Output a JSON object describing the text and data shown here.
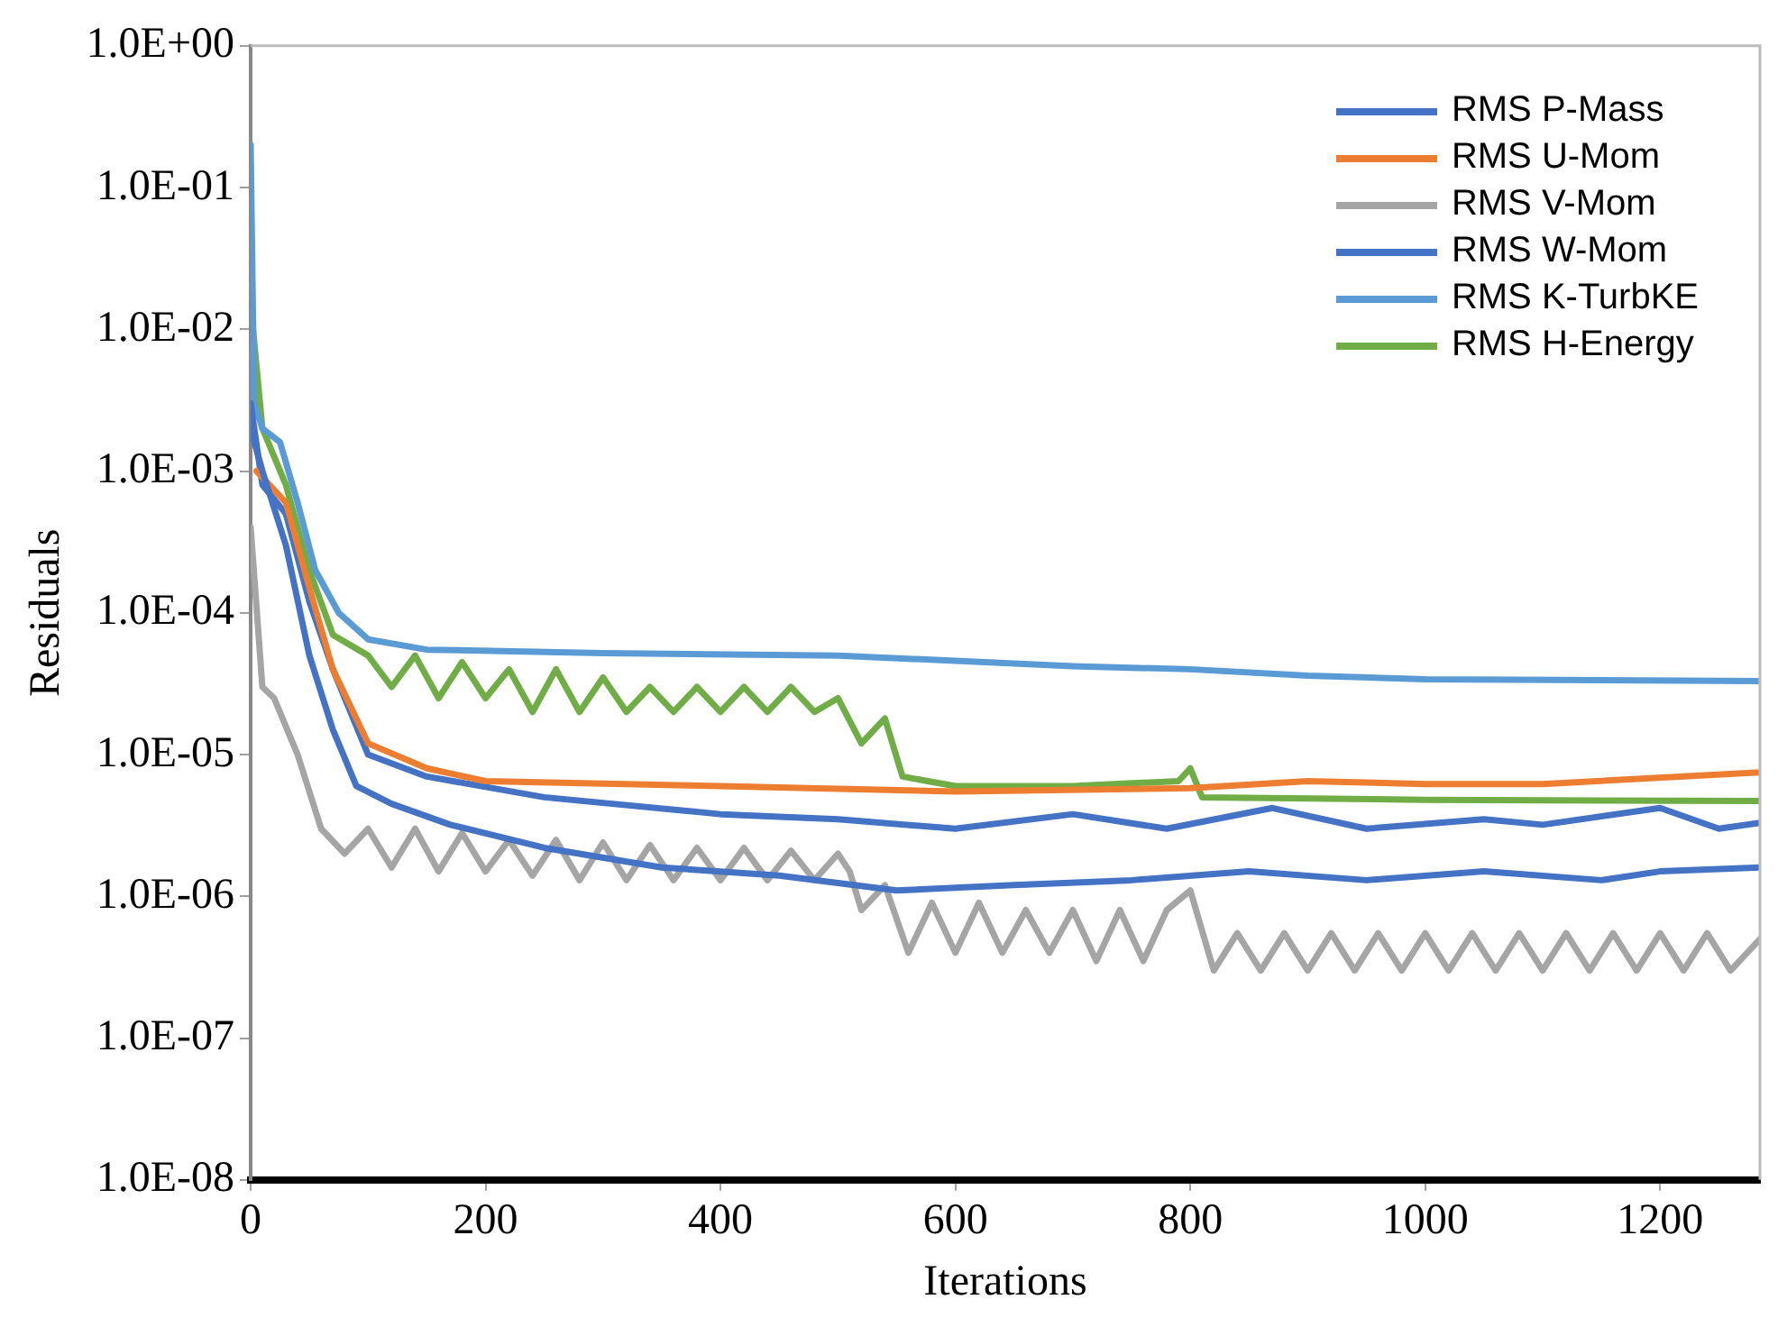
{
  "chart_data": {
    "type": "line",
    "xlabel": "Iterations",
    "ylabel": "Residuals",
    "log": "y",
    "grid": false,
    "legend": "top right",
    "marker": "none",
    "line_style": "solid",
    "xlim": [
      0,
      1285
    ],
    "xticks": [
      0,
      200,
      400,
      600,
      800,
      1000,
      1200
    ],
    "ylim": [
      1e-08,
      1
    ],
    "yticks": [
      {
        "value": 1,
        "label": "1.0E+00"
      },
      {
        "value": 0.1,
        "label": "1.0E-01"
      },
      {
        "value": 0.01,
        "label": "1.0E-02"
      },
      {
        "value": 0.001,
        "label": "1.0E-03"
      },
      {
        "value": 0.0001,
        "label": "1.0E-04"
      },
      {
        "value": 1e-05,
        "label": "1.0E-05"
      },
      {
        "value": 1e-06,
        "label": "1.0E-06"
      },
      {
        "value": 1e-07,
        "label": "1.0E-07"
      },
      {
        "value": 1e-08,
        "label": "1.0E-08"
      }
    ],
    "series": [
      {
        "name": "RMS P-Mass",
        "color": "#4472c4",
        "x": [
          0,
          10,
          30,
          50,
          70,
          90,
          120,
          170,
          250,
          350,
          450,
          550,
          650,
          750,
          850,
          950,
          1050,
          1150,
          1200,
          1285
        ],
        "values": [
          0.002,
          0.001,
          0.0003,
          5e-05,
          1.5e-05,
          6e-06,
          4.5e-06,
          3.2e-06,
          2.2e-06,
          1.6e-06,
          1.4e-06,
          1.1e-06,
          1.2e-06,
          1.3e-06,
          1.5e-06,
          1.3e-06,
          1.5e-06,
          1.3e-06,
          1.5e-06,
          1.6e-06
        ]
      },
      {
        "name": "RMS U-Mom",
        "color": "#ed7d31",
        "x": [
          5,
          30,
          50,
          70,
          100,
          150,
          200,
          400,
          600,
          800,
          900,
          1000,
          1100,
          1285
        ],
        "values": [
          0.001,
          0.0006,
          0.00015,
          4e-05,
          1.2e-05,
          8e-06,
          6.5e-06,
          6e-06,
          5.5e-06,
          5.8e-06,
          6.5e-06,
          6.2e-06,
          6.2e-06,
          7.5e-06
        ]
      },
      {
        "name": "RMS V-Mom",
        "color": "#a5a5a5",
        "x": [
          0,
          10,
          20,
          40,
          60,
          80,
          100,
          120,
          140,
          160,
          180,
          200,
          220,
          240,
          260,
          280,
          300,
          320,
          340,
          360,
          380,
          400,
          420,
          440,
          460,
          480,
          500,
          510,
          520,
          540,
          560,
          580,
          600,
          620,
          640,
          660,
          680,
          700,
          720,
          740,
          760,
          780,
          800,
          820,
          840,
          860,
          880,
          900,
          920,
          940,
          960,
          980,
          1000,
          1020,
          1040,
          1060,
          1080,
          1100,
          1120,
          1140,
          1160,
          1180,
          1200,
          1220,
          1240,
          1260,
          1285
        ],
        "values": [
          0.0004,
          3e-05,
          2.5e-05,
          1e-05,
          3e-06,
          2e-06,
          3e-06,
          1.6e-06,
          3e-06,
          1.5e-06,
          2.8e-06,
          1.5e-06,
          2.5e-06,
          1.4e-06,
          2.5e-06,
          1.3e-06,
          2.4e-06,
          1.3e-06,
          2.3e-06,
          1.3e-06,
          2.2e-06,
          1.3e-06,
          2.2e-06,
          1.3e-06,
          2.1e-06,
          1.3e-06,
          2e-06,
          1.5e-06,
          8e-07,
          1.2e-06,
          4e-07,
          9e-07,
          4e-07,
          9e-07,
          4e-07,
          8e-07,
          4e-07,
          8e-07,
          3.5e-07,
          8e-07,
          3.5e-07,
          8e-07,
          1.1e-06,
          3e-07,
          5.5e-07,
          3e-07,
          5.5e-07,
          3e-07,
          5.5e-07,
          3e-07,
          5.5e-07,
          3e-07,
          5.5e-07,
          3e-07,
          5.5e-07,
          3e-07,
          5.5e-07,
          3e-07,
          5.5e-07,
          3e-07,
          5.5e-07,
          3e-07,
          5.5e-07,
          3e-07,
          5.5e-07,
          3e-07,
          5e-07
        ]
      },
      {
        "name": "RMS W-Mom",
        "color": "#4472c4",
        "x": [
          0,
          10,
          30,
          50,
          70,
          100,
          150,
          250,
          400,
          500,
          600,
          700,
          780,
          870,
          950,
          1050,
          1100,
          1200,
          1250,
          1285
        ],
        "values": [
          0.003,
          0.0008,
          0.0005,
          0.00012,
          4e-05,
          1e-05,
          7e-06,
          5e-06,
          3.8e-06,
          3.5e-06,
          3e-06,
          3.8e-06,
          3e-06,
          4.2e-06,
          3e-06,
          3.5e-06,
          3.2e-06,
          4.2e-06,
          3e-06,
          3.3e-06
        ]
      },
      {
        "name": "RMS K-TurbKE",
        "color": "#5b9bd5",
        "x": [
          0,
          3,
          10,
          25,
          40,
          55,
          75,
          100,
          150,
          300,
          500,
          700,
          800,
          900,
          1000,
          1285
        ],
        "values": [
          0.2,
          0.003,
          0.002,
          0.0016,
          0.0006,
          0.0002,
          0.0001,
          6.5e-05,
          5.5e-05,
          5.2e-05,
          5e-05,
          4.2e-05,
          4e-05,
          3.6e-05,
          3.4e-05,
          3.3e-05
        ]
      },
      {
        "name": "RMS H-Energy",
        "color": "#70ad47",
        "x": [
          0,
          10,
          30,
          50,
          70,
          100,
          120,
          140,
          160,
          180,
          200,
          220,
          240,
          260,
          280,
          300,
          320,
          340,
          360,
          380,
          400,
          420,
          440,
          460,
          480,
          500,
          520,
          540,
          555,
          600,
          700,
          790,
          800,
          810,
          1000,
          1285
        ],
        "values": [
          0.015,
          0.002,
          0.0008,
          0.0002,
          7e-05,
          5e-05,
          3e-05,
          5e-05,
          2.5e-05,
          4.5e-05,
          2.5e-05,
          4e-05,
          2e-05,
          4e-05,
          2e-05,
          3.5e-05,
          2e-05,
          3e-05,
          2e-05,
          3e-05,
          2e-05,
          3e-05,
          2e-05,
          3e-05,
          2e-05,
          2.5e-05,
          1.2e-05,
          1.8e-05,
          7e-06,
          6e-06,
          6e-06,
          6.5e-06,
          8e-06,
          5e-06,
          4.8e-06,
          4.7e-06
        ]
      }
    ]
  }
}
